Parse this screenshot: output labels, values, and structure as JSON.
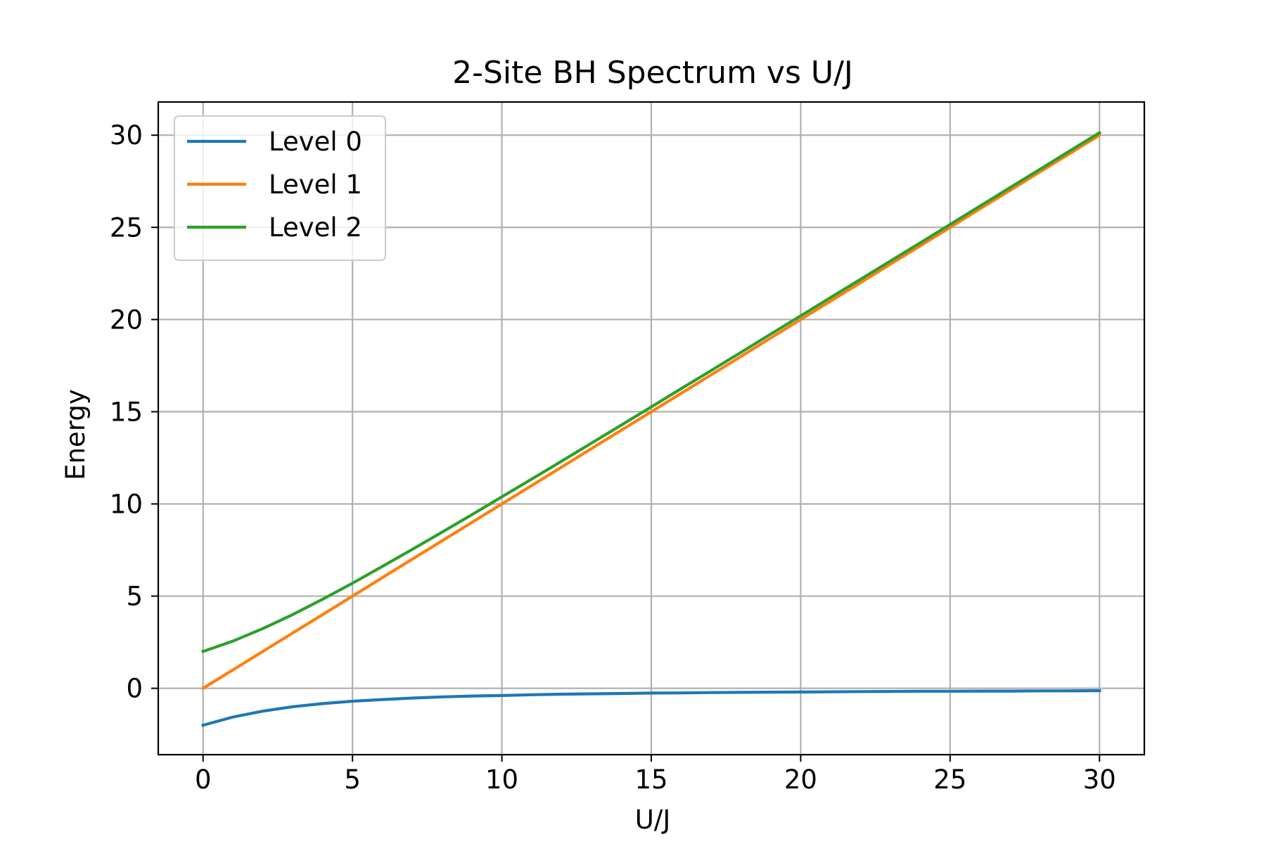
{
  "chart_data": {
    "type": "line",
    "title": "2-Site BH Spectrum vs U/J",
    "xlabel": "U/J",
    "ylabel": "Energy",
    "xlim": [
      -1.5,
      31.5
    ],
    "ylim": [
      -3.6,
      31.8
    ],
    "xticks": [
      0,
      5,
      10,
      15,
      20,
      25,
      30
    ],
    "yticks": [
      0,
      5,
      10,
      15,
      20,
      25,
      30
    ],
    "xtick_labels": [
      "0",
      "5",
      "10",
      "15",
      "20",
      "25",
      "30"
    ],
    "ytick_labels": [
      "0",
      "5",
      "10",
      "15",
      "20",
      "25",
      "30"
    ],
    "grid": true,
    "legend_position": "top-left",
    "x": [
      0,
      1,
      2,
      3,
      4,
      5,
      6,
      7,
      8,
      9,
      10,
      11,
      12,
      13,
      14,
      15,
      16,
      17,
      18,
      19,
      20,
      21,
      22,
      23,
      24,
      25,
      26,
      27,
      28,
      29,
      30
    ],
    "series": [
      {
        "name": "Level 0",
        "color": "#1f77b4",
        "values": [
          -2.0,
          -1.56,
          -1.24,
          -1.0,
          -0.83,
          -0.7,
          -0.61,
          -0.53,
          -0.47,
          -0.42,
          -0.39,
          -0.35,
          -0.32,
          -0.3,
          -0.28,
          -0.26,
          -0.25,
          -0.23,
          -0.22,
          -0.21,
          -0.2,
          -0.19,
          -0.18,
          -0.17,
          -0.16,
          -0.16,
          -0.15,
          -0.15,
          -0.14,
          -0.14,
          -0.13
        ]
      },
      {
        "name": "Level 1",
        "color": "#ff7f0e",
        "values": [
          0,
          1,
          2,
          3,
          4,
          5,
          6,
          7,
          8,
          9,
          10,
          11,
          12,
          13,
          14,
          15,
          16,
          17,
          18,
          19,
          20,
          21,
          22,
          23,
          24,
          25,
          26,
          27,
          28,
          29,
          30
        ]
      },
      {
        "name": "Level 2",
        "color": "#2ca02c",
        "values": [
          2.0,
          2.56,
          3.24,
          4.0,
          4.83,
          5.7,
          6.61,
          7.53,
          8.47,
          9.42,
          10.39,
          11.35,
          12.32,
          13.3,
          14.28,
          15.26,
          16.25,
          17.23,
          18.22,
          19.21,
          20.2,
          21.19,
          22.18,
          23.17,
          24.16,
          25.16,
          26.15,
          27.15,
          28.14,
          29.14,
          30.13
        ]
      }
    ]
  }
}
